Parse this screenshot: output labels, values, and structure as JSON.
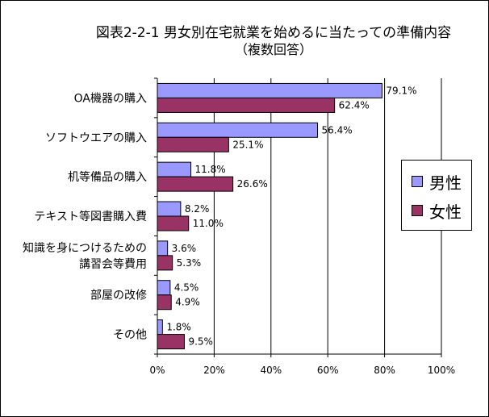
{
  "chart_data": {
    "type": "bar",
    "orientation": "horizontal",
    "title": "図表2-2-1  男女別在宅就業を始めるに当たっての準備内容",
    "subtitle": "（複数回答）",
    "categories": [
      [
        "OA機器の購入"
      ],
      [
        "ソフトウエアの購入"
      ],
      [
        "机等備品の購入"
      ],
      [
        "テキスト等図書購入費"
      ],
      [
        "知識を身につけるための",
        "講習会等費用"
      ],
      [
        "部屋の改修"
      ],
      [
        "その他"
      ]
    ],
    "series": [
      {
        "name": "男性",
        "color": "#9999ff",
        "values": [
          79.1,
          56.4,
          11.8,
          8.2,
          3.6,
          4.5,
          1.8
        ],
        "labels": [
          "79.1%",
          "56.4%",
          "11.8%",
          "8.2%",
          "3.6%",
          "4.5%",
          "1.8%"
        ]
      },
      {
        "name": "女性",
        "color": "#993366",
        "values": [
          62.4,
          25.1,
          26.6,
          11.0,
          5.3,
          4.9,
          9.5
        ],
        "labels": [
          "62.4%",
          "25.1%",
          "26.6%",
          "11.0%",
          "5.3%",
          "4.9%",
          "9.5%"
        ]
      }
    ],
    "xlim": [
      0,
      100
    ],
    "xticks": [
      0,
      20,
      40,
      60,
      80,
      100
    ],
    "xtick_labels": [
      "0%",
      "20%",
      "40%",
      "60%",
      "80%",
      "100%"
    ],
    "xlabel": "",
    "ylabel": "",
    "grid": "vertical",
    "legend_position": "right"
  }
}
